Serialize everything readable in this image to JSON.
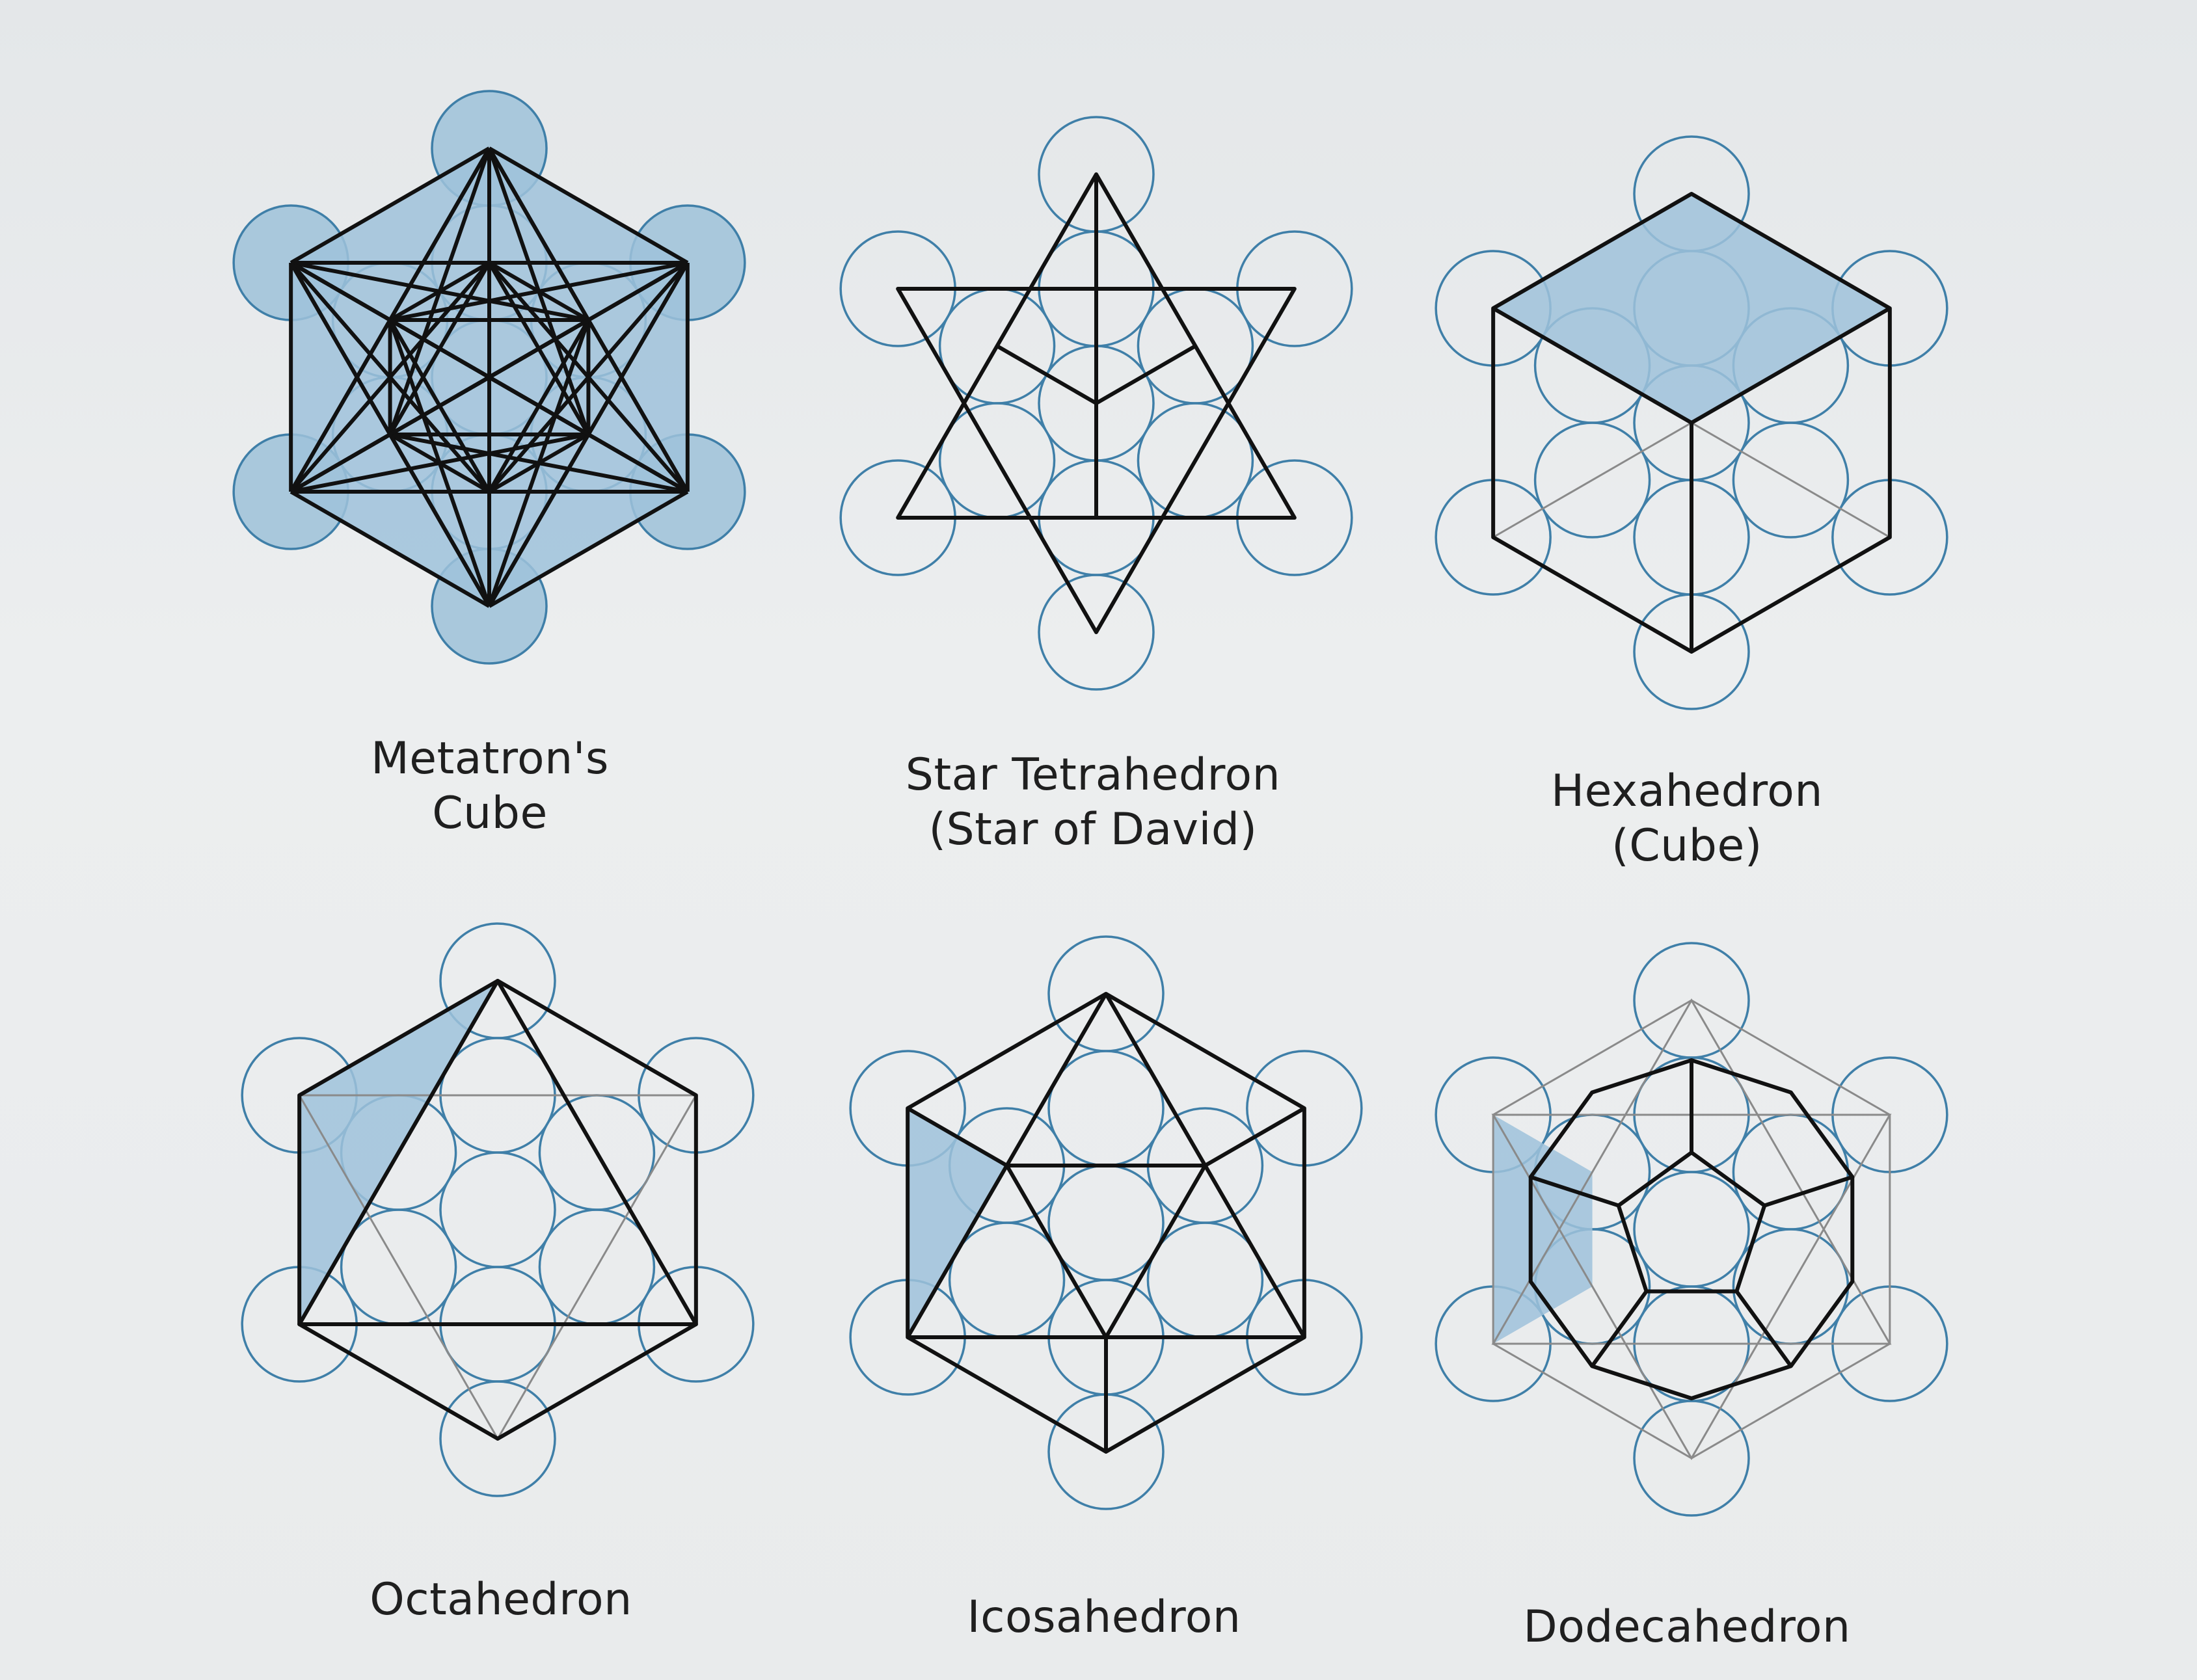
{
  "figures": [
    {
      "id": "metatrons-cube",
      "lines": [
        "Metatron's",
        "Cube"
      ]
    },
    {
      "id": "star-tetrahedron",
      "lines": [
        "Star Tetrahedron",
        "(Star of David)"
      ]
    },
    {
      "id": "hexahedron",
      "lines": [
        "Hexahedron",
        "(Cube)"
      ]
    },
    {
      "id": "octahedron",
      "lines": [
        "Octahedron"
      ]
    },
    {
      "id": "icosahedron",
      "lines": [
        "Icosahedron"
      ]
    },
    {
      "id": "dodecahedron",
      "lines": [
        "Dodecahedron"
      ]
    }
  ],
  "colors": {
    "circle_stroke": "#3f7fa8",
    "shade_fill": "#9fc2da",
    "edge": "#111111",
    "background": "#e9ebec"
  }
}
